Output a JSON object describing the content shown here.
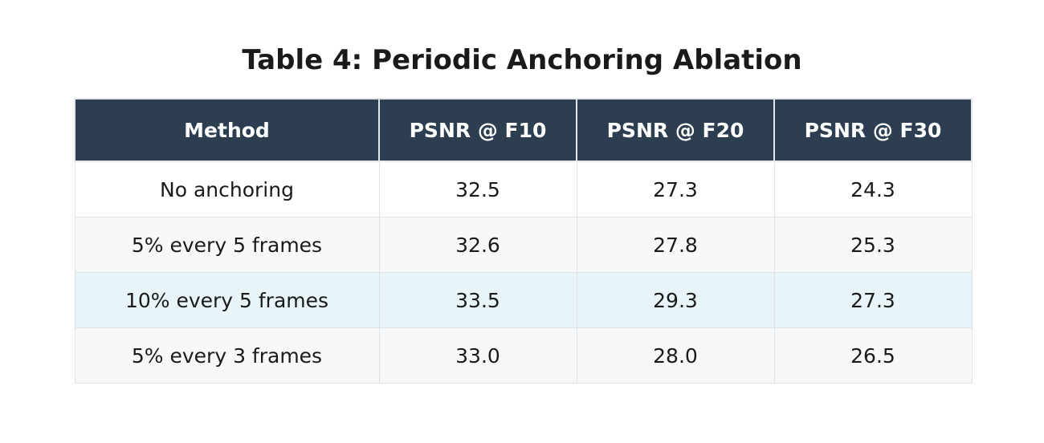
{
  "title": "Table 4: Periodic Anchoring Ablation",
  "table": {
    "headers": [
      "Method",
      "PSNR @ F10",
      "PSNR @ F20",
      "PSNR @ F30"
    ],
    "rows": [
      [
        "No anchoring",
        "32.5",
        "27.3",
        "24.3"
      ],
      [
        "5% every 5 frames",
        "32.6",
        "27.8",
        "25.3"
      ],
      [
        "10% every 5 frames",
        "33.5",
        "29.3",
        "27.3"
      ],
      [
        "5% every 3 frames",
        "33.0",
        "28.0",
        "26.5"
      ]
    ],
    "highlight_color": "#e8f4f8",
    "header_color": "#2c3e50"
  }
}
